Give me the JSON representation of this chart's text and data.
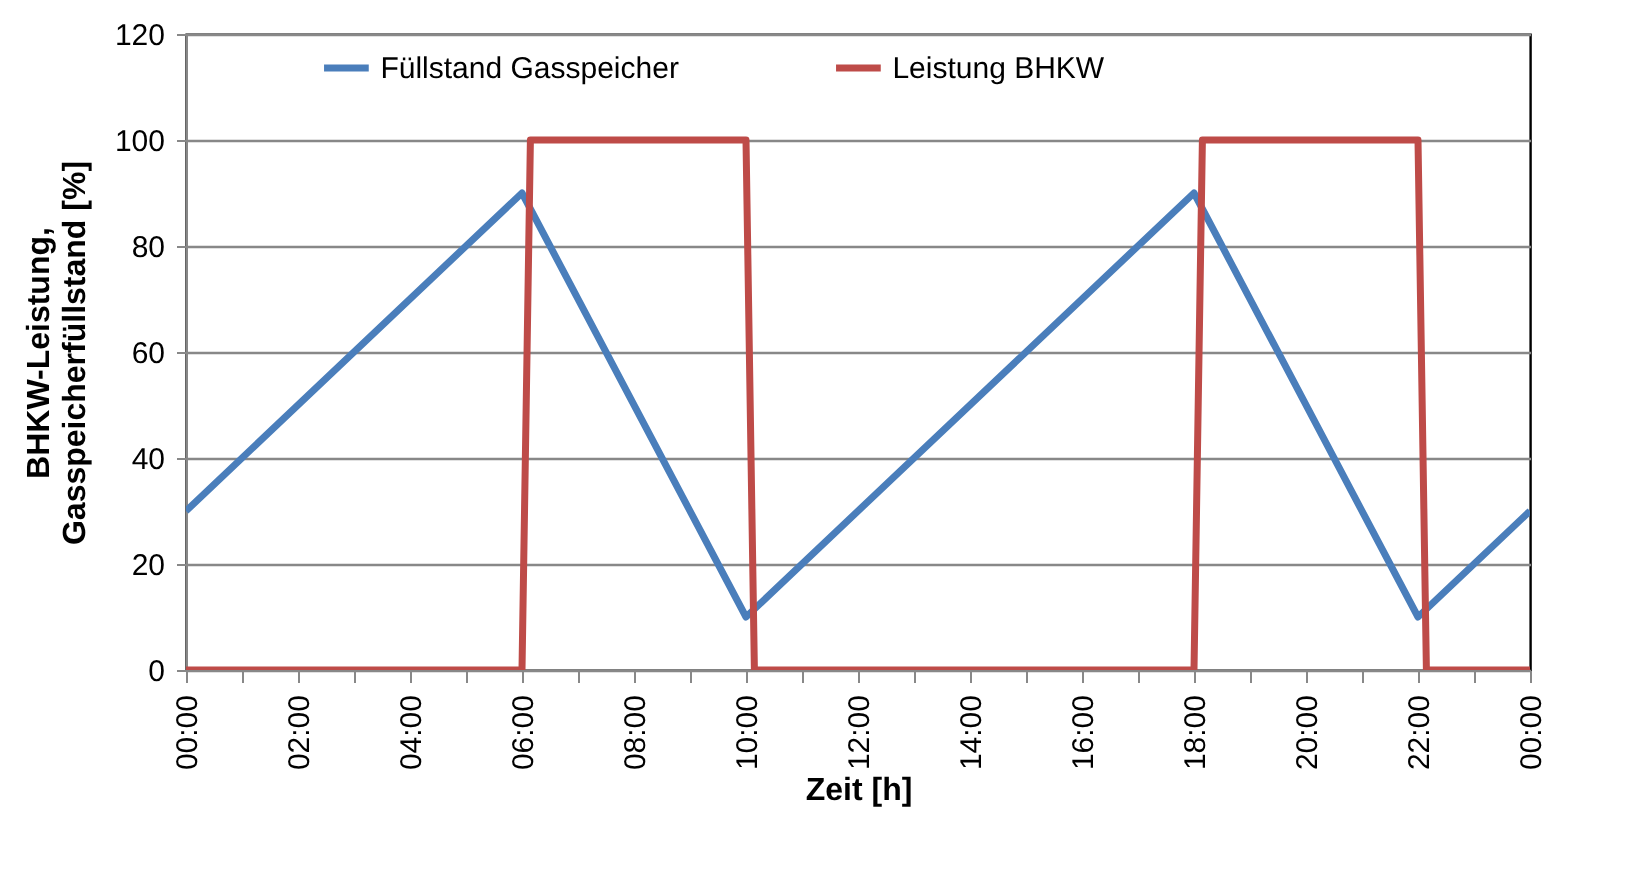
{
  "chart_data": {
    "type": "line",
    "xlabel": "Zeit [h]",
    "ylabel": "BHKW-Leistung, Gasspeicherfüllstand [%]",
    "series": [
      {
        "name": "Füllstand Gasspeicher",
        "color": "#4a7ebb",
        "x": [
          0,
          6,
          10,
          18,
          22,
          24
        ],
        "values": [
          30,
          90,
          10,
          90,
          10,
          30
        ]
      },
      {
        "name": "Leistung BHKW",
        "color": "#be4b48",
        "x": [
          0,
          6,
          6.15,
          10,
          10.15,
          18,
          18.15,
          22,
          22.15,
          24
        ],
        "values": [
          0,
          0,
          100,
          100,
          0,
          0,
          100,
          100,
          0,
          0
        ]
      }
    ],
    "xlim": [
      0,
      24
    ],
    "xticks": [
      {
        "value": 0,
        "label": "00:00"
      },
      {
        "value": 1,
        "label": null
      },
      {
        "value": 2,
        "label": "02:00"
      },
      {
        "value": 3,
        "label": null
      },
      {
        "value": 4,
        "label": "04:00"
      },
      {
        "value": 5,
        "label": null
      },
      {
        "value": 6,
        "label": "06:00"
      },
      {
        "value": 7,
        "label": null
      },
      {
        "value": 8,
        "label": "08:00"
      },
      {
        "value": 9,
        "label": null
      },
      {
        "value": 10,
        "label": "10:00"
      },
      {
        "value": 11,
        "label": null
      },
      {
        "value": 12,
        "label": "12:00"
      },
      {
        "value": 13,
        "label": null
      },
      {
        "value": 14,
        "label": "14:00"
      },
      {
        "value": 15,
        "label": null
      },
      {
        "value": 16,
        "label": "16:00"
      },
      {
        "value": 17,
        "label": null
      },
      {
        "value": 18,
        "label": "18:00"
      },
      {
        "value": 19,
        "label": null
      },
      {
        "value": 20,
        "label": "20:00"
      },
      {
        "value": 21,
        "label": null
      },
      {
        "value": 22,
        "label": "22:00"
      },
      {
        "value": 23,
        "label": null
      },
      {
        "value": 24,
        "label": "00:00"
      }
    ],
    "ylim": [
      0,
      120
    ],
    "yticks": [
      0,
      20,
      40,
      60,
      80,
      100,
      120
    ],
    "grid": "y",
    "legend": "top",
    "marker": "none",
    "line_style": "solid"
  }
}
